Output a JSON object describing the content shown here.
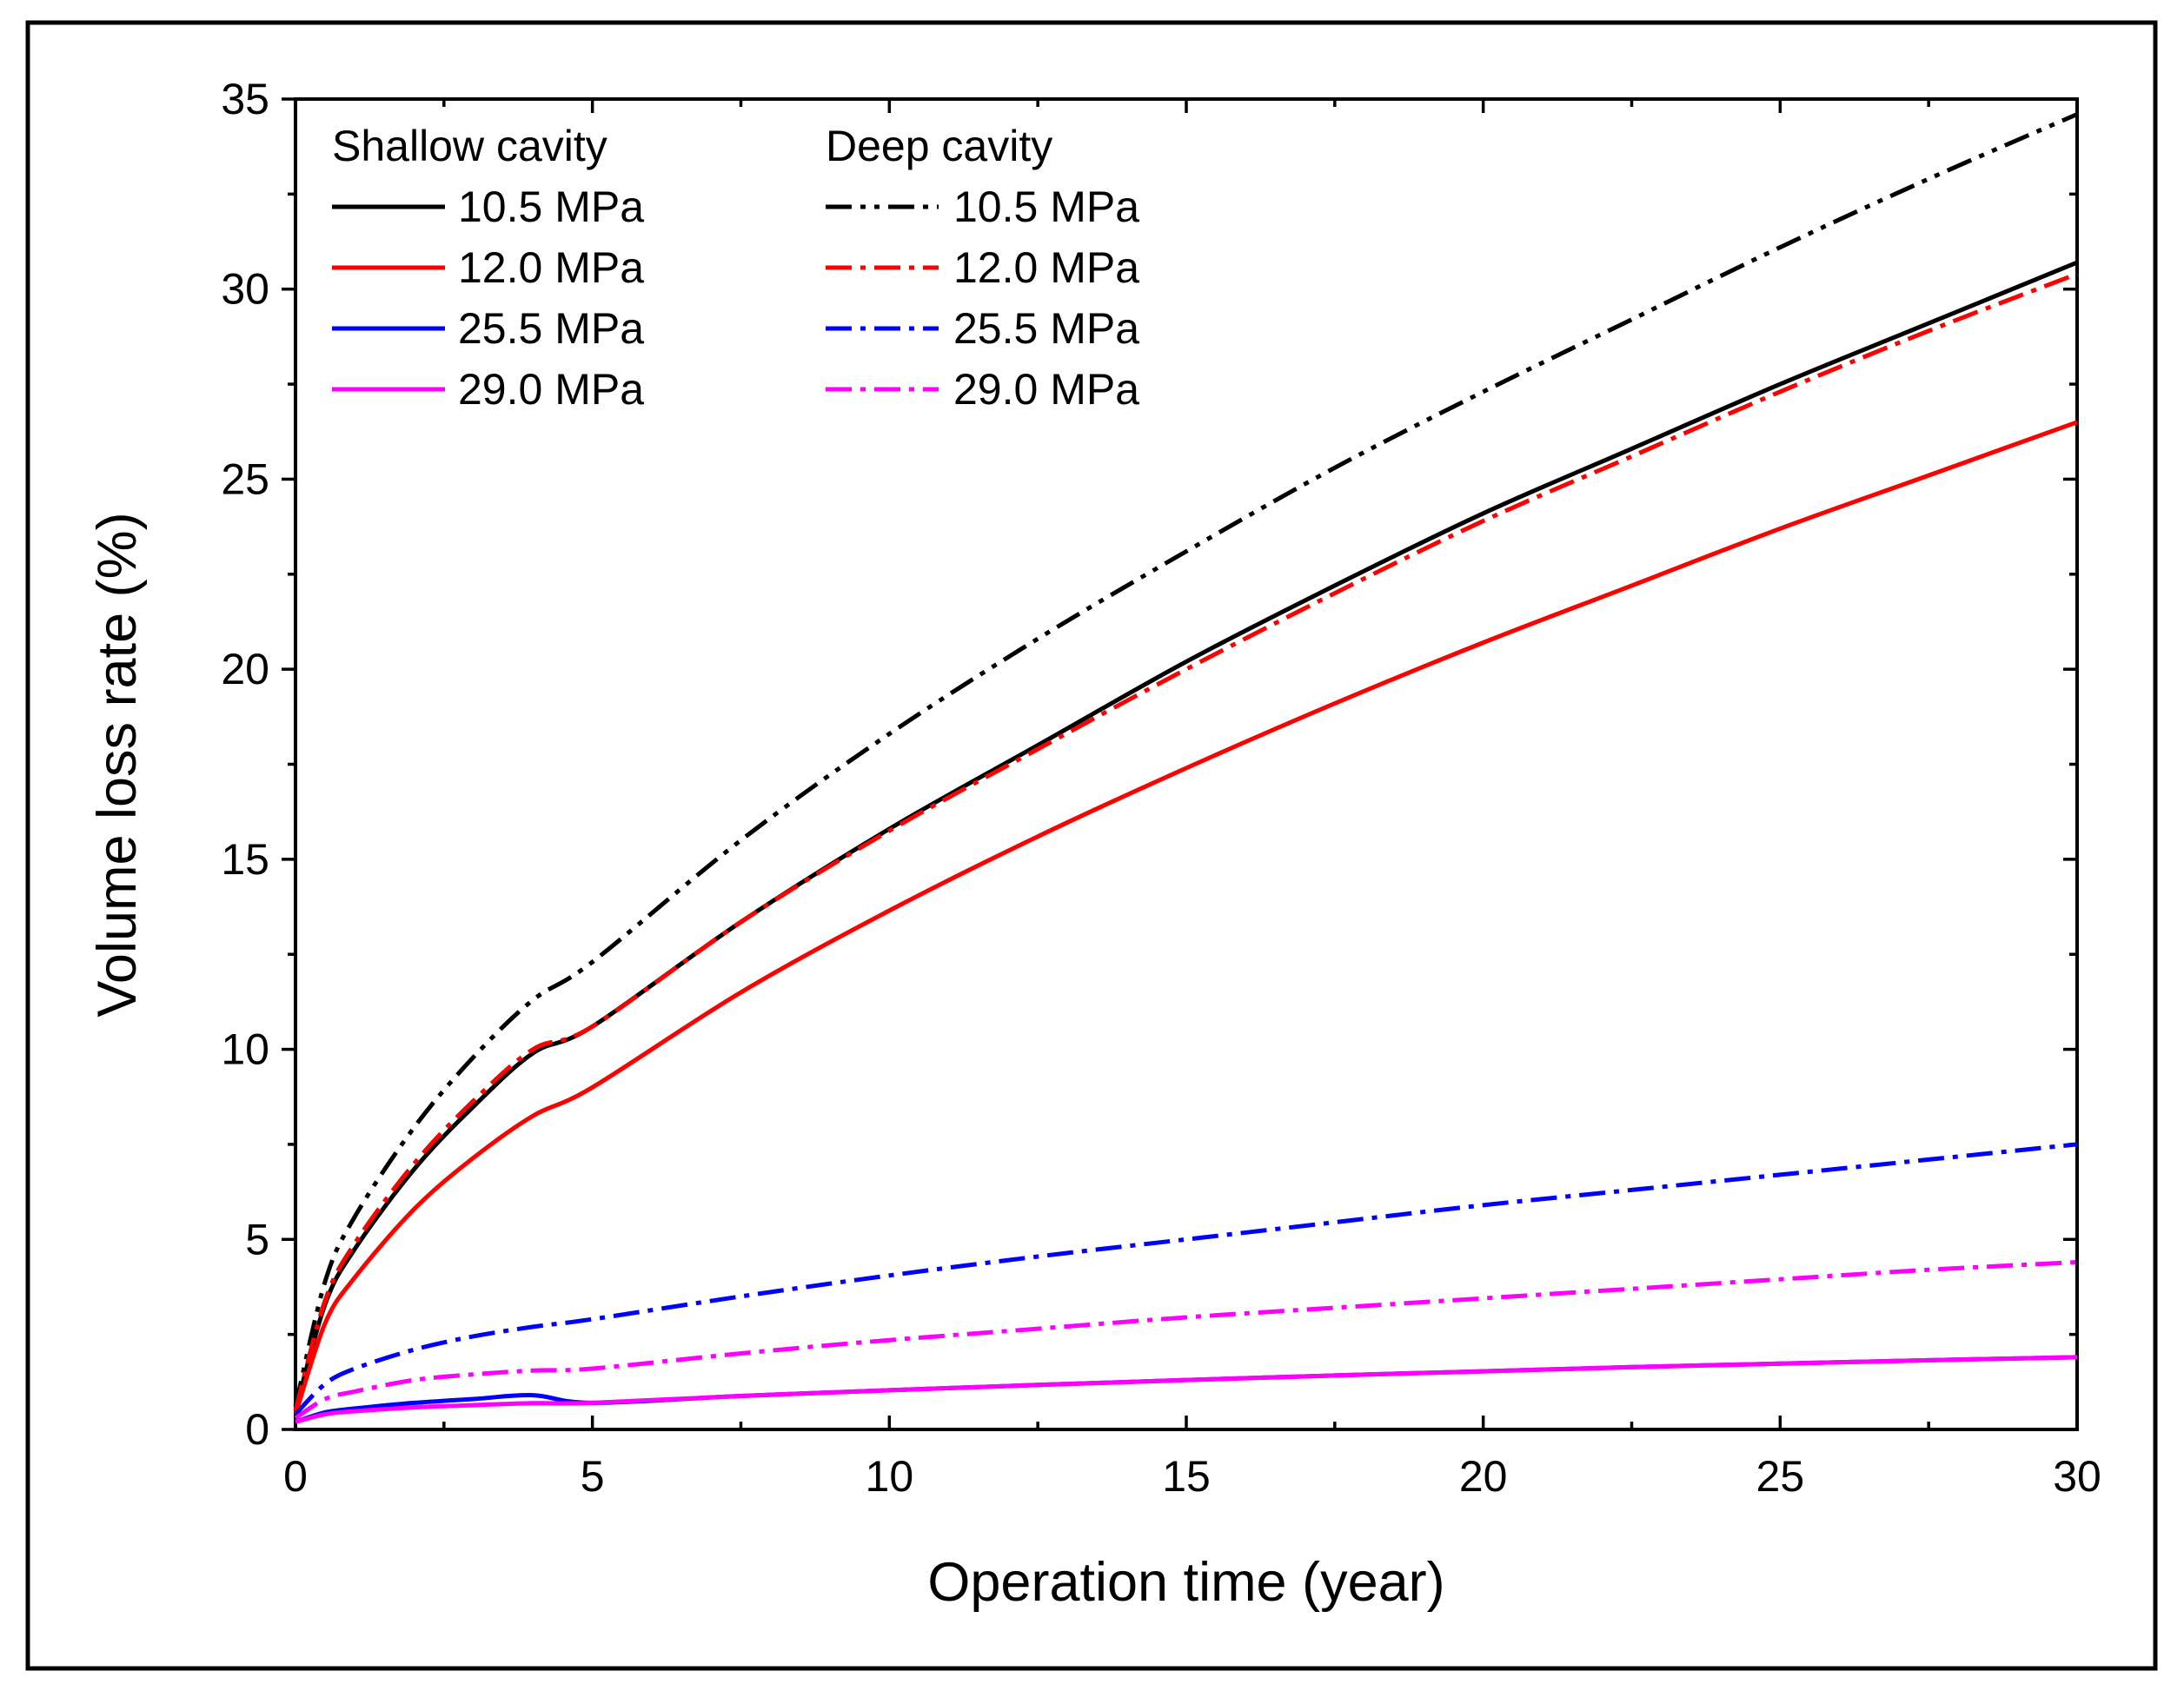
{
  "chart_data": {
    "type": "line",
    "title": "",
    "xlabel": "Operation time (year)",
    "ylabel": "Volume loss rate (%)",
    "xlim": [
      0,
      30
    ],
    "ylim": [
      0,
      35
    ],
    "x_ticks": [
      0,
      5,
      10,
      15,
      20,
      25,
      30
    ],
    "y_ticks": [
      0,
      5,
      10,
      15,
      20,
      25,
      30,
      35
    ],
    "x_tick_labels": [
      "0",
      "5",
      "10",
      "15",
      "20",
      "25",
      "30"
    ],
    "y_tick_labels": [
      "0",
      "5",
      "10",
      "15",
      "20",
      "25",
      "30",
      "35"
    ],
    "grid": false,
    "legend_position": "top-left",
    "legend_groups": [
      {
        "heading": "Shallow cavity",
        "entries": [
          "10.5 MPa",
          "12.0 MPa",
          "25.5 MPa",
          "29.0 MPa"
        ]
      },
      {
        "heading": "Deep cavity",
        "entries": [
          "10.5 MPa",
          "12.0 MPa",
          "25.5 MPa",
          "29.0 MPa"
        ]
      }
    ],
    "x": [
      0,
      0.5,
      1,
      2,
      3,
      4,
      5,
      7.5,
      10,
      12.5,
      15,
      17.5,
      20,
      22.5,
      25,
      27.5,
      30
    ],
    "series": [
      {
        "name": "Shallow cavity 10.5 MPa",
        "group": "Shallow cavity",
        "pressure": "10.5 MPa",
        "color": "#000000",
        "style": "solid",
        "values": [
          0.5,
          3.3,
          4.75,
          6.85,
          8.5,
          9.9,
          10.6,
          13.35,
          15.8,
          18.0,
          20.2,
          22.2,
          24.1,
          25.8,
          27.5,
          29.1,
          30.7
        ]
      },
      {
        "name": "Shallow cavity 12.0 MPa",
        "group": "Shallow cavity",
        "pressure": "12.0 MPa",
        "color": "#ff0000",
        "style": "solid",
        "values": [
          0.4,
          2.8,
          4.0,
          5.8,
          7.15,
          8.25,
          9.0,
          11.5,
          13.65,
          15.6,
          17.4,
          19.1,
          20.7,
          22.2,
          23.7,
          25.1,
          26.5
        ]
      },
      {
        "name": "Shallow cavity 25.5 MPa",
        "group": "Shallow cavity",
        "pressure": "25.5 MPa",
        "color": "#0000ff",
        "style": "solid",
        "values": [
          0.2,
          0.45,
          0.55,
          0.7,
          0.8,
          0.9,
          0.7,
          0.88,
          1.03,
          1.17,
          1.3,
          1.42,
          1.53,
          1.64,
          1.73,
          1.82,
          1.9
        ]
      },
      {
        "name": "Shallow cavity 29.0 MPa",
        "group": "Shallow cavity",
        "pressure": "29.0 MPa",
        "color": "#ff00ff",
        "style": "solid",
        "values": [
          0.2,
          0.4,
          0.48,
          0.58,
          0.64,
          0.69,
          0.7,
          0.88,
          1.03,
          1.17,
          1.3,
          1.42,
          1.53,
          1.64,
          1.73,
          1.82,
          1.9
        ]
      },
      {
        "name": "Deep cavity 10.5 MPa",
        "group": "Deep cavity",
        "pressure": "10.5 MPa",
        "color": "#000000",
        "style": "dash-dot-dot",
        "values": [
          0.6,
          3.9,
          5.6,
          7.95,
          9.8,
          11.3,
          12.3,
          15.5,
          18.3,
          20.8,
          23.1,
          25.3,
          27.3,
          29.2,
          31.1,
          32.9,
          34.6
        ]
      },
      {
        "name": "Deep cavity 12.0 MPa",
        "group": "Deep cavity",
        "pressure": "12.0 MPa",
        "color": "#ff0000",
        "style": "dash-dot",
        "values": [
          0.5,
          3.4,
          4.9,
          7.0,
          8.65,
          10.0,
          10.6,
          13.35,
          15.75,
          17.9,
          20.0,
          22.0,
          23.9,
          25.6,
          27.3,
          28.9,
          30.4
        ]
      },
      {
        "name": "Deep cavity 25.5 MPa",
        "group": "Deep cavity",
        "pressure": "25.5 MPa",
        "color": "#0000ff",
        "style": "dash-dot",
        "values": [
          0.4,
          1.2,
          1.6,
          2.1,
          2.45,
          2.7,
          2.9,
          3.5,
          4.05,
          4.55,
          5.0,
          5.45,
          5.9,
          6.3,
          6.7,
          7.1,
          7.5
        ]
      },
      {
        "name": "Deep cavity 29.0 MPa",
        "group": "Deep cavity",
        "pressure": "29.0 MPa",
        "color": "#ff00ff",
        "style": "dash-dot",
        "values": [
          0.3,
          0.8,
          1.0,
          1.3,
          1.45,
          1.55,
          1.6,
          2.0,
          2.35,
          2.65,
          2.95,
          3.2,
          3.45,
          3.7,
          3.95,
          4.2,
          4.4
        ]
      }
    ]
  }
}
